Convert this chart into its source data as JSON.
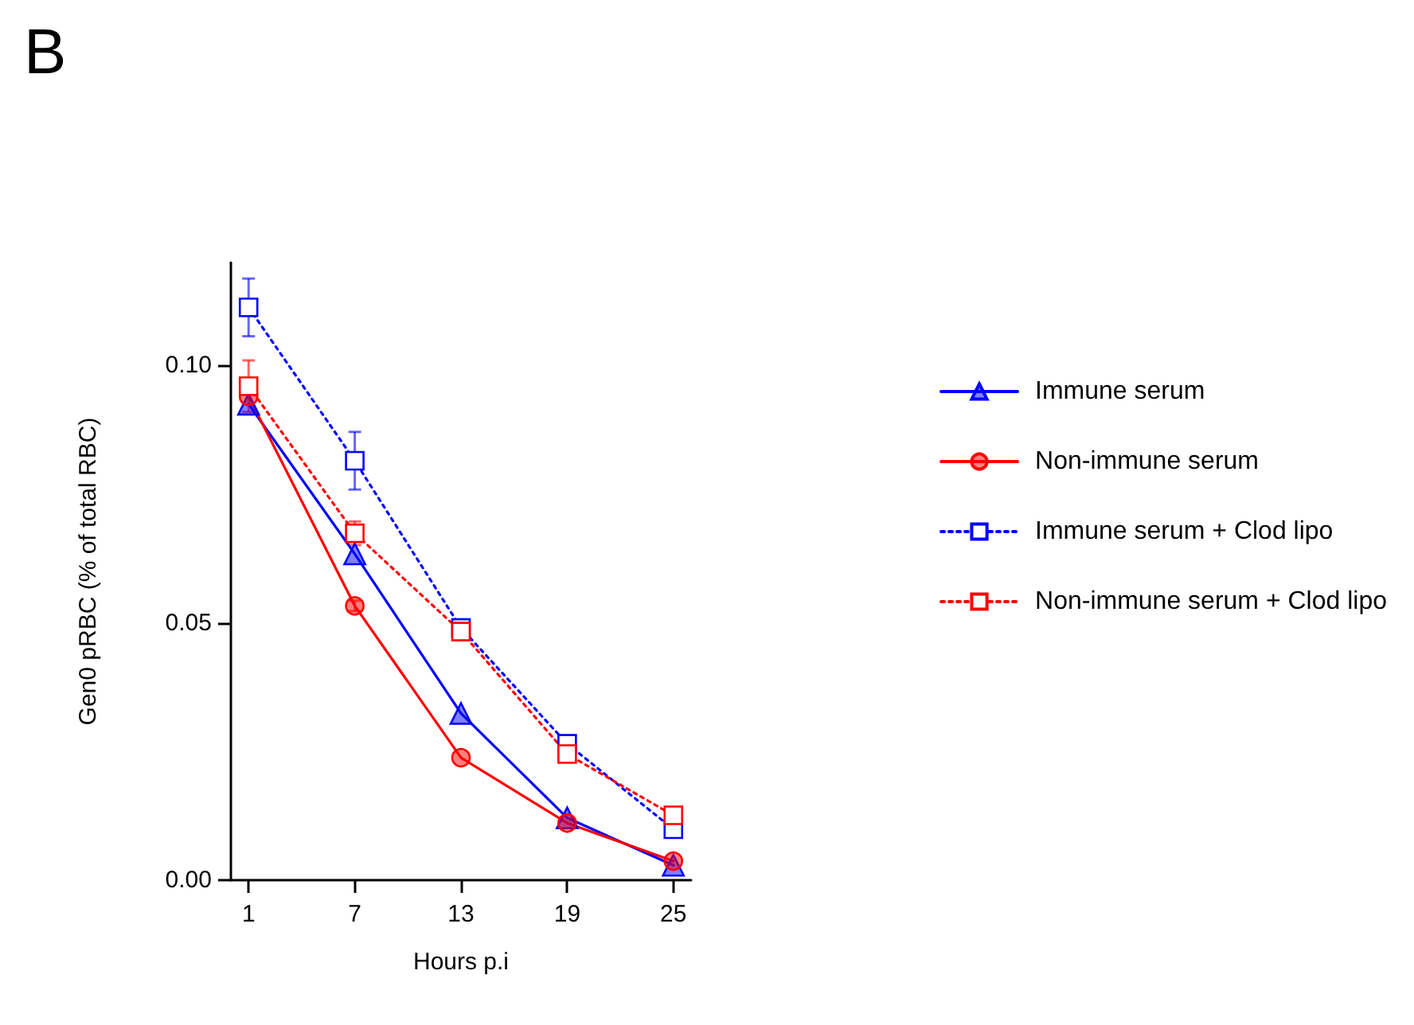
{
  "chart_data": {
    "type": "line",
    "title": "B",
    "xlabel": "Hours p.i",
    "ylabel": "Gen0 pRBC (% of total RBC)",
    "x": [
      1,
      7,
      13,
      19,
      25
    ],
    "xlim": [
      0,
      26
    ],
    "xticks": [
      1,
      7,
      13,
      19,
      25
    ],
    "ylim": [
      0,
      0.12
    ],
    "yticks": [
      {
        "value": 0,
        "label": "0.00"
      },
      {
        "value": 0.05,
        "label": "0.05"
      },
      {
        "value": 0.1,
        "label": "0.10"
      }
    ],
    "grid": false,
    "legend": "right",
    "series": [
      {
        "name": "Immune serum",
        "color": "#0000ff",
        "marker": "triangle",
        "line_style": "solid",
        "values": [
          0.0925,
          0.0634,
          0.0324,
          0.0121,
          0.0029
        ]
      },
      {
        "name": "Non-immune serum",
        "color": "#ff0000",
        "marker": "circle",
        "line_style": "solid",
        "values": [
          0.094,
          0.0533,
          0.0238,
          0.0111,
          0.0037
        ],
        "errors": [
          null,
          0.001,
          null,
          null,
          null
        ]
      },
      {
        "name": "Immune serum + Clod lipo",
        "color": "#0000ff",
        "marker": "square",
        "line_style": "dotted",
        "values": [
          0.1113,
          0.0815,
          0.049,
          0.0265,
          0.0099
        ],
        "errors": [
          0.0056,
          0.0056,
          null,
          null,
          null
        ]
      },
      {
        "name": "Non-immune serum + Clod lipo",
        "color": "#ff0000",
        "marker": "square",
        "line_style": "dotted",
        "values": [
          0.096,
          0.0674,
          0.0483,
          0.0245,
          0.0126
        ],
        "errors": [
          0.005,
          0.0023,
          null,
          null,
          null
        ]
      }
    ]
  }
}
